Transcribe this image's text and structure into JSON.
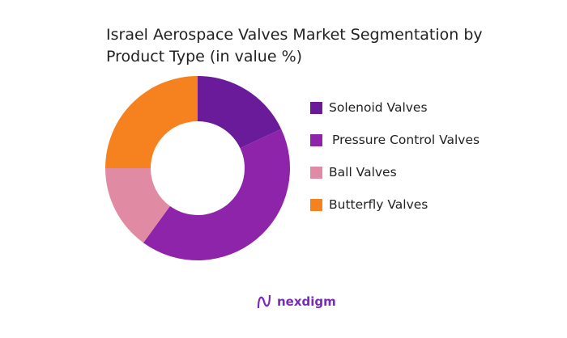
{
  "chart_data": {
    "type": "pie",
    "donut": true,
    "title": "Israel Aerospace Valves Market Segmentation by Product Type (in value %)",
    "title_lines": [
      "Israel Aerospace Valves Market Segmentation by",
      "Product Type (in value %)"
    ],
    "categories": [
      "Solenoid Valves",
      "Pressure Control Valves",
      "Ball Valves",
      "Butterfly Valves"
    ],
    "values": [
      18,
      42,
      15,
      25
    ],
    "colors": [
      "#6a1b9a",
      "#8e24aa",
      "#e08aa4",
      "#f5821f"
    ],
    "legend_position": "right"
  },
  "brand": {
    "name": "nexdigm",
    "color": "#7a2ab8"
  }
}
